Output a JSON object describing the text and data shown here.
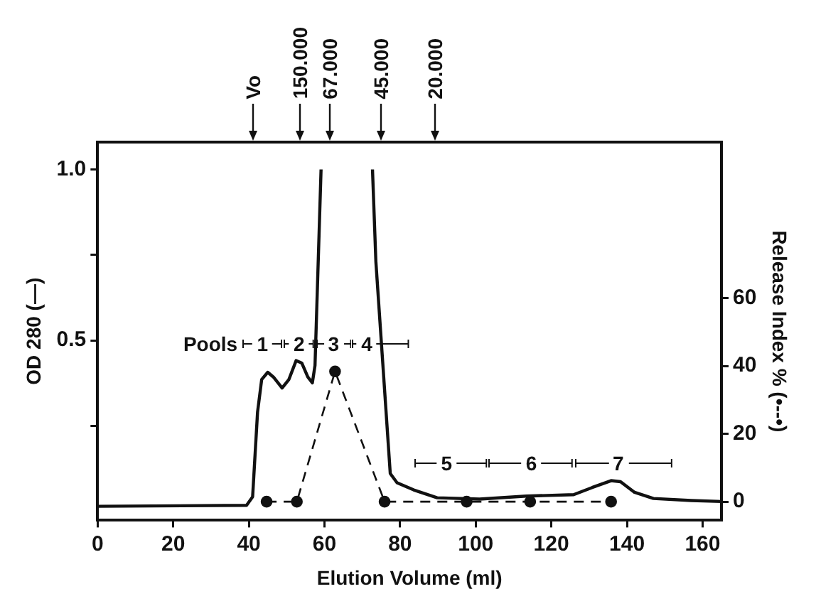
{
  "chart_data": {
    "type": "line",
    "xlabel": "Elution Volume (ml)",
    "ylabel": "OD 280 (—)",
    "y2label": "Release Index % (•--•)",
    "series": [
      {
        "color": "#111111",
        "marker": "none",
        "line_style": "solid",
        "x": [
          0,
          39.4,
          41,
          42.3,
          43.4,
          45,
          46.5,
          48.8,
          50.6,
          52.5,
          54,
          55.6,
          56.8,
          57.5,
          59.1,
          65,
          72.7,
          73.6,
          77.4,
          79.2,
          83.6,
          89.8,
          101,
          113.4,
          125.9,
          130.8,
          135.8,
          138.3,
          142,
          147,
          157,
          165
        ],
        "values": [
          0.015,
          0.018,
          0.043,
          0.29,
          0.386,
          0.407,
          0.393,
          0.361,
          0.386,
          0.441,
          0.434,
          0.393,
          0.376,
          0.427,
          1.0,
          null,
          1.0,
          0.73,
          0.111,
          0.084,
          0.063,
          0.04,
          0.036,
          0.045,
          0.049,
          0.07,
          0.09,
          0.087,
          0.056,
          0.038,
          0.032,
          0.029
        ]
      },
      {
        "color": "#111111",
        "marker": "circle",
        "line_style": "dashed",
        "axis": "y2",
        "x": [
          44.7,
          52.7,
          62.8,
          75.9,
          97.6,
          114.4,
          135.8
        ],
        "values": [
          0,
          0,
          38.4,
          0,
          0,
          0,
          0
        ]
      }
    ],
    "xlim": [
      0,
      165
    ],
    "xticks": [
      0,
      20,
      40,
      60,
      80,
      100,
      120,
      140,
      160
    ],
    "ylim": [
      -0.026,
      1.08
    ],
    "yticks": [
      {
        "value": 0.25,
        "label": null
      },
      0.5,
      {
        "value": 0.75,
        "label": null
      },
      {
        "value": 1,
        "label": "1.0"
      }
    ],
    "y2lim": [
      -5.5,
      106
    ],
    "y2ticks": [
      0,
      20,
      40,
      60
    ],
    "annotations": [
      "Vo",
      "150.000",
      "67.000",
      "45.000",
      "20.000",
      "Pools",
      "1",
      "2",
      "3",
      "4",
      "5",
      "6",
      "7"
    ],
    "grid": false,
    "legend": false
  }
}
